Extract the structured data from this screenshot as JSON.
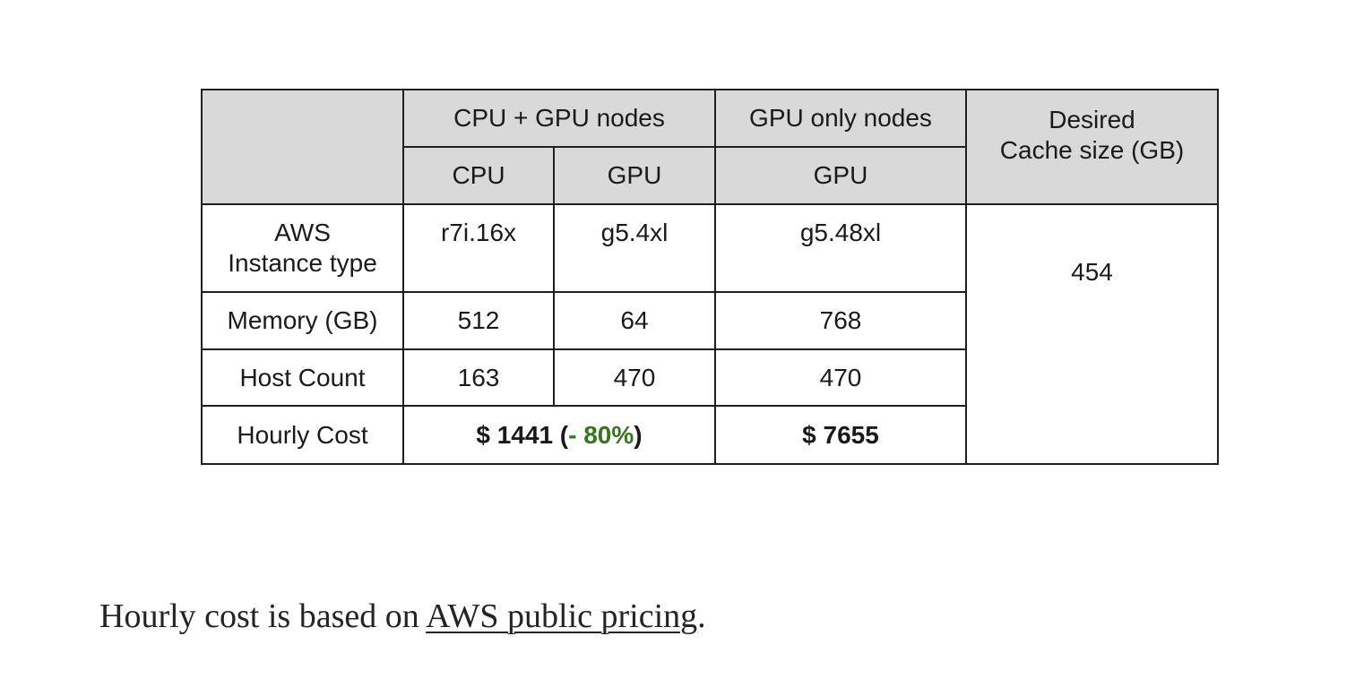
{
  "table": {
    "group_headers": {
      "cpu_gpu_nodes": "CPU + GPU nodes",
      "gpu_only_nodes": "GPU only nodes",
      "desired_cache_line1": "Desired",
      "desired_cache_line2": "Cache size (GB)"
    },
    "sub_headers": {
      "cpu": "CPU",
      "gpu": "GPU",
      "gpu_only": "GPU"
    },
    "rows": {
      "instance": {
        "label_line1": "AWS",
        "label_line2": "Instance type",
        "cpu": "r7i.16x",
        "gpu": "g5.4xl",
        "gpu_only": "g5.48xl"
      },
      "memory": {
        "label": "Memory (GB)",
        "cpu": "512",
        "gpu": "64",
        "gpu_only": "768"
      },
      "hosts": {
        "label": "Host Count",
        "cpu": "163",
        "gpu": "470",
        "gpu_only": "470"
      },
      "cost": {
        "label": "Hourly Cost",
        "combined_prefix": "$ 1441 (",
        "combined_delta": "- 80%",
        "combined_suffix": ")",
        "gpu_only": "$ 7655"
      }
    },
    "desired_cache_value": "454"
  },
  "caption": {
    "before": "Hourly cost is based on ",
    "link_text": "AWS public pricing",
    "after": "."
  }
}
